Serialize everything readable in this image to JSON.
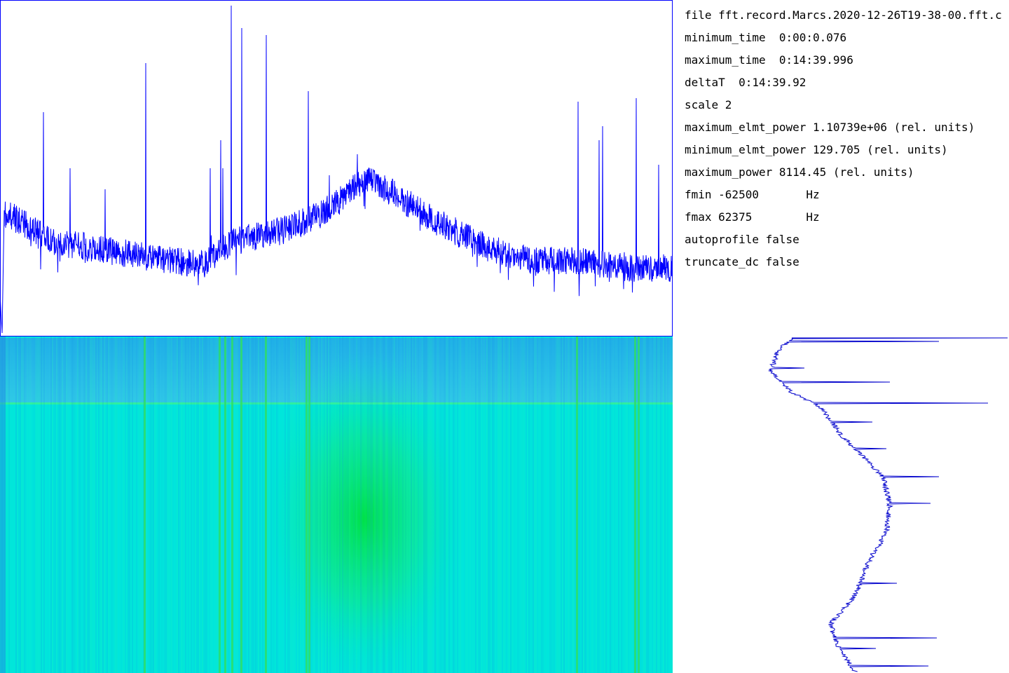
{
  "info": {
    "lines": [
      "file fft.record.Marcs.2020-12-26T19-38-00.fft.c",
      "minimum_time  0:00:0.076",
      "maximum_time  0:14:39.996",
      "deltaT  0:14:39.92",
      "scale 2",
      "maximum_elmt_power 1.10739e+06 (rel. units)",
      "minimum_elmt_power 129.705 (rel. units)",
      "maximum_power 8114.45 (rel. units)",
      "fmin -62500       Hz",
      "fmax 62375        Hz",
      "autoprofile false",
      "truncate_dc false"
    ]
  }
}
